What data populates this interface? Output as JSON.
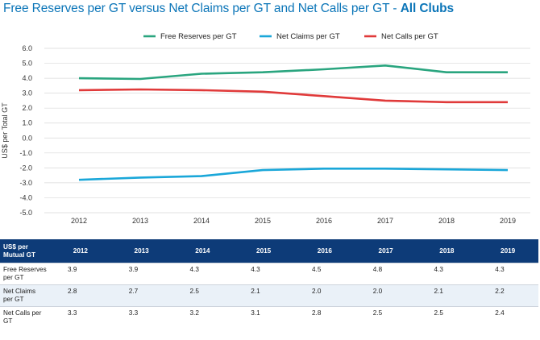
{
  "title": {
    "main": "Free Reserves per GT versus Net Claims per GT and Net Calls per GT - ",
    "emphasis": "All Clubs"
  },
  "chart_data": {
    "type": "line",
    "ylabel": "US$ per Total GT",
    "ylim": [
      -5.0,
      6.0
    ],
    "yticks": [
      "6.0",
      "5.0",
      "4.0",
      "3.0",
      "2.0",
      "1.0",
      "0.0",
      "-1.0",
      "-2.0",
      "-3.0",
      "-4.0",
      "-5.0"
    ],
    "categories": [
      "2012",
      "2013",
      "2014",
      "2015",
      "2016",
      "2017",
      "2018",
      "2019"
    ],
    "series": [
      {
        "name": "Free Reserves per GT",
        "color": "#2aa57f",
        "values": [
          4.0,
          3.95,
          4.3,
          4.4,
          4.6,
          4.85,
          4.4,
          4.4
        ]
      },
      {
        "name": "Net Claims per GT",
        "color": "#1aa7d9",
        "values": [
          -2.8,
          -2.65,
          -2.55,
          -2.15,
          -2.05,
          -2.05,
          -2.1,
          -2.15
        ]
      },
      {
        "name": "Net Calls per GT",
        "color": "#e03a3a",
        "values": [
          3.2,
          3.25,
          3.2,
          3.1,
          2.8,
          2.5,
          2.4,
          2.4
        ]
      }
    ]
  },
  "table": {
    "header_label": "US$ per Mutual GT",
    "columns": [
      "2012",
      "2013",
      "2014",
      "2015",
      "2016",
      "2017",
      "2018",
      "2019"
    ],
    "rows": [
      {
        "label": "Free Reserves per GT",
        "values": [
          "3.9",
          "3.9",
          "4.3",
          "4.3",
          "4.5",
          "4.8",
          "4.3",
          "4.3"
        ]
      },
      {
        "label": "Net Claims per GT",
        "values": [
          "2.8",
          "2.7",
          "2.5",
          "2.1",
          "2.0",
          "2.0",
          "2.1",
          "2.2"
        ]
      },
      {
        "label": "Net Calls per GT",
        "values": [
          "3.3",
          "3.3",
          "3.2",
          "3.1",
          "2.8",
          "2.5",
          "2.5",
          "2.4"
        ]
      }
    ]
  }
}
